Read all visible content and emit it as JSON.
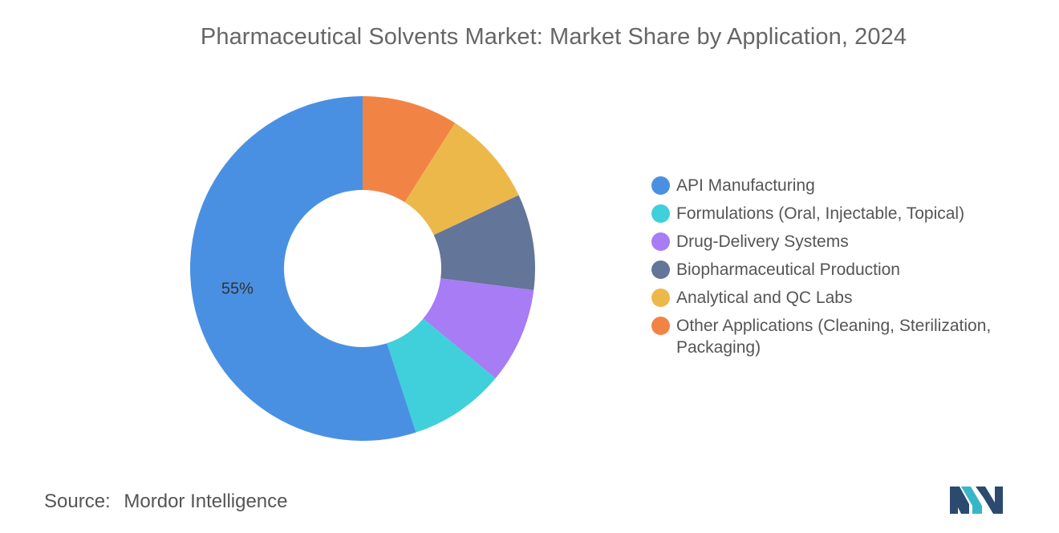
{
  "chart_data": {
    "type": "pie",
    "title": "Pharmaceutical Solvents Market: Market Share by Application, 2024",
    "categories": [
      "API Manufacturing",
      "Formulations (Oral, Injectable, Topical)",
      "Drug-Delivery Systems",
      "Biopharmaceutical Production",
      "Analytical and QC Labs",
      "Other Applications (Cleaning, Sterilization, Packaging)"
    ],
    "values": [
      55,
      9,
      9,
      9,
      9,
      9
    ],
    "data_labels": [
      "55%",
      "",
      "",
      "",
      "",
      ""
    ],
    "colors": [
      "#4a90e2",
      "#3fd0db",
      "#a77cf5",
      "#637598",
      "#ecb84a",
      "#f18445"
    ],
    "slice_order_clockwise_from_top": [
      5,
      4,
      3,
      2,
      1,
      0
    ],
    "donut": true,
    "legend_position": "right"
  },
  "legend": {
    "items": [
      {
        "label": "API Manufacturing",
        "color": "#4a90e2"
      },
      {
        "label": "Formulations (Oral, Injectable, Topical)",
        "color": "#3fd0db"
      },
      {
        "label": "Drug-Delivery Systems",
        "color": "#a77cf5"
      },
      {
        "label": "Biopharmaceutical Production",
        "color": "#637598"
      },
      {
        "label": "Analytical and QC Labs",
        "color": "#ecb84a"
      },
      {
        "label": "Other Applications (Cleaning, Sterilization, Packaging)",
        "color": "#f18445"
      }
    ]
  },
  "source": {
    "label": "Source:",
    "value": "Mordor Intelligence"
  },
  "logo": {
    "icon": "mordor-intelligence-logo",
    "colors": [
      "#2c4a6e",
      "#38b6c9"
    ]
  }
}
